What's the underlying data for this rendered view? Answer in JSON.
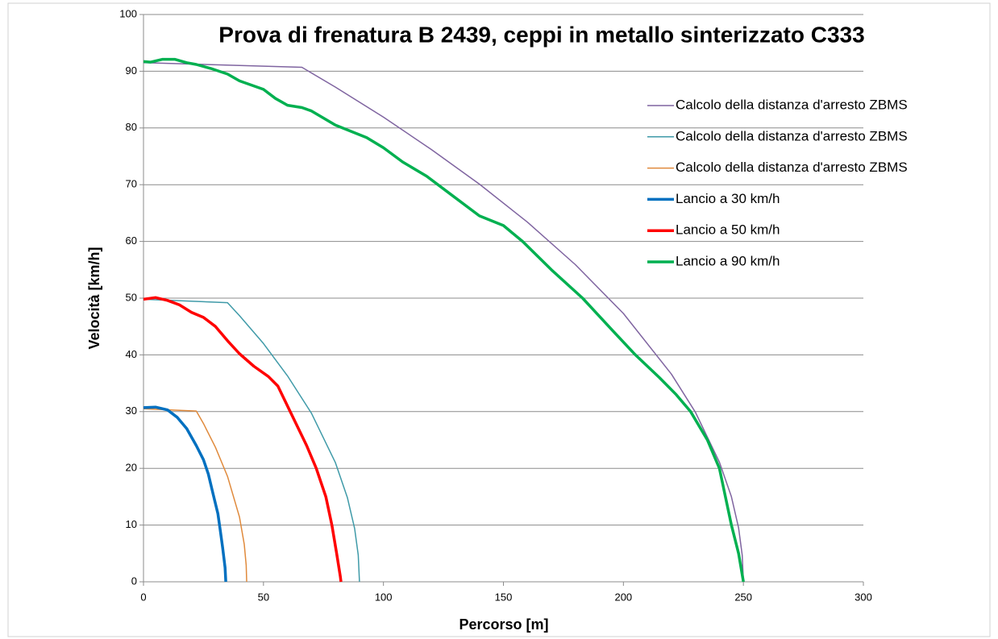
{
  "chart_data": {
    "type": "line",
    "title": "Prova di frenatura B 2439, ceppi in metallo sinterizzato C333",
    "x_label": "Percorso [m]",
    "y_label": "Velocità [km/h]",
    "xlim": [
      0,
      300
    ],
    "xticks": [
      0,
      50,
      100,
      150,
      200,
      250,
      300
    ],
    "ylim": [
      0,
      100
    ],
    "yticks": [
      0,
      10,
      20,
      30,
      40,
      50,
      60,
      70,
      80,
      90,
      100
    ],
    "grid": true,
    "legend": "top-right",
    "series": [
      {
        "name": "Calcolo della distanza d'arresto ZBMS",
        "color": "#7f64a0",
        "line_width": 1.5,
        "x": [
          0,
          66,
          80,
          100,
          120,
          140,
          160,
          180,
          200,
          220,
          230,
          240,
          245,
          248,
          249.5,
          250
        ],
        "values": [
          91.5,
          90.7,
          87.2,
          81.9,
          76.2,
          70.1,
          63.4,
          55.9,
          47.3,
          36.6,
          29.9,
          21.1,
          15.0,
          9.5,
          4.7,
          0
        ]
      },
      {
        "name": "Calcolo della distanza d'arresto ZBMS",
        "color": "#3f9aa8",
        "line_width": 1.5,
        "x": [
          0,
          35,
          40,
          50,
          60,
          70,
          80,
          85,
          88,
          89.5,
          90
        ],
        "values": [
          49.8,
          49.2,
          46.9,
          42.0,
          36.3,
          29.7,
          21.0,
          14.8,
          9.4,
          4.7,
          0
        ]
      },
      {
        "name": "Calcolo della distanza d'arresto ZBMS",
        "color": "#e08a3c",
        "line_width": 1.5,
        "x": [
          0,
          22,
          25,
          30,
          35,
          40,
          42,
          42.8,
          43
        ],
        "values": [
          30.5,
          30.1,
          27.9,
          23.7,
          18.6,
          11.4,
          6.6,
          2.9,
          0
        ]
      },
      {
        "name": "Lancio a 30 km/h",
        "color": "#0070c0",
        "line_width": 3.5,
        "x": [
          0,
          5,
          10,
          14,
          18,
          22,
          25,
          27,
          29,
          31,
          32,
          33,
          34,
          34.3
        ],
        "values": [
          30.7,
          30.8,
          30.3,
          29,
          27,
          24,
          21.5,
          19,
          15.5,
          12,
          9,
          6,
          2.5,
          0
        ]
      },
      {
        "name": "Lancio a 50 km/h",
        "color": "#ff0000",
        "line_width": 3.5,
        "x": [
          0,
          5,
          10,
          15,
          20,
          25,
          30,
          35,
          40,
          46,
          52,
          56,
          60,
          64,
          68,
          72,
          76,
          78.5,
          80.5,
          82,
          82.3
        ],
        "values": [
          49.8,
          50.1,
          49.6,
          48.8,
          47.5,
          46.6,
          45,
          42.5,
          40.2,
          38,
          36.2,
          34.5,
          31,
          27.5,
          24,
          20,
          15,
          10,
          5,
          1,
          0
        ]
      },
      {
        "name": "Lancio a 90 km/h",
        "color": "#00b050",
        "line_width": 3.5,
        "x": [
          0,
          3,
          8,
          13,
          18,
          22,
          28,
          35,
          40,
          50,
          55,
          60,
          66,
          70,
          80,
          93,
          100,
          108,
          118,
          129,
          140,
          150,
          158,
          170,
          183,
          195,
          205,
          215,
          222,
          228,
          235,
          240,
          245,
          248,
          250
        ],
        "values": [
          91.7,
          91.6,
          92.1,
          92.1,
          91.5,
          91.2,
          90.5,
          89.5,
          88.3,
          86.8,
          85.2,
          84,
          83.6,
          83,
          80.5,
          78.3,
          76.5,
          74,
          71.5,
          68,
          64.5,
          62.8,
          60,
          55,
          50,
          44.5,
          40,
          36,
          33,
          30,
          25,
          20,
          10,
          5,
          0
        ]
      }
    ]
  }
}
